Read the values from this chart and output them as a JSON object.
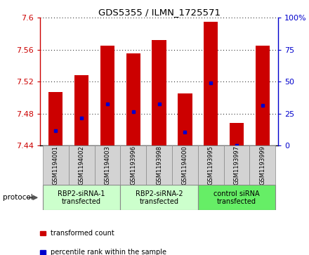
{
  "title": "GDS5355 / ILMN_1725571",
  "samples": [
    "GSM1194001",
    "GSM1194002",
    "GSM1194003",
    "GSM1193996",
    "GSM1193998",
    "GSM1194000",
    "GSM1193995",
    "GSM1193997",
    "GSM1193999"
  ],
  "bar_bottoms": [
    7.44,
    7.44,
    7.44,
    7.44,
    7.44,
    7.44,
    7.44,
    7.44,
    7.44
  ],
  "bar_tops": [
    7.507,
    7.528,
    7.565,
    7.555,
    7.572,
    7.505,
    7.595,
    7.468,
    7.565
  ],
  "blue_dots": [
    7.458,
    7.474,
    7.492,
    7.482,
    7.492,
    7.457,
    7.518,
    7.44,
    7.49
  ],
  "ylim_left": [
    7.44,
    7.6
  ],
  "ylim_right": [
    0,
    100
  ],
  "yticks_left": [
    7.44,
    7.48,
    7.52,
    7.56,
    7.6
  ],
  "ytick_labels_left": [
    "7.44",
    "7.48",
    "7.52",
    "7.56",
    "7.6"
  ],
  "yticks_right": [
    0,
    25,
    50,
    75,
    100
  ],
  "ytick_labels_right": [
    "0",
    "25",
    "50",
    "75",
    "100%"
  ],
  "bar_color": "#cc0000",
  "dot_color": "#0000cc",
  "axis_left_color": "#cc0000",
  "axis_right_color": "#0000cc",
  "groups": [
    {
      "label": "RBP2-siRNA-1\ntransfected",
      "indices": [
        0,
        1,
        2
      ],
      "color": "#ccffcc"
    },
    {
      "label": "RBP2-siRNA-2\ntransfected",
      "indices": [
        3,
        4,
        5
      ],
      "color": "#ccffcc"
    },
    {
      "label": "control siRNA\ntransfected",
      "indices": [
        6,
        7,
        8
      ],
      "color": "#66ee66"
    }
  ],
  "protocol_label": "protocol",
  "sample_bg_color": "#d3d3d3",
  "legend_items": [
    {
      "label": "transformed count",
      "color": "#cc0000"
    },
    {
      "label": "percentile rank within the sample",
      "color": "#0000cc"
    }
  ],
  "bar_width": 0.55
}
